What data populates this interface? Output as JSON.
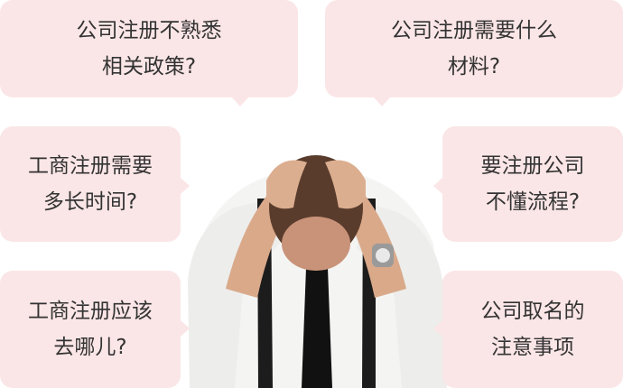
{
  "bubbles": [
    {
      "lines": [
        "公司注册不熟悉",
        "相关政策?"
      ]
    },
    {
      "lines": [
        "公司注册需要什么",
        "材料?"
      ]
    },
    {
      "lines": [
        "工商注册需要",
        "多长时间?"
      ]
    },
    {
      "lines": [
        "要注册公司",
        "不懂流程?"
      ]
    },
    {
      "lines": [
        "工商注册应该",
        "去哪儿?"
      ]
    },
    {
      "lines": [
        "公司取名的",
        "注意事项"
      ]
    }
  ],
  "colors": {
    "bubble_bg": "#fbe6e7",
    "text": "#333333"
  }
}
